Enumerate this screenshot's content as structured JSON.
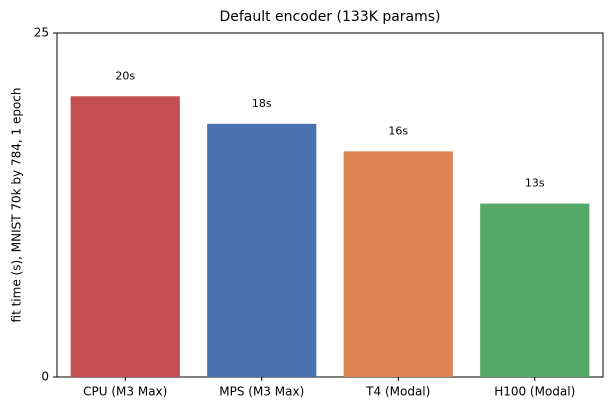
{
  "chart_data": {
    "type": "bar",
    "title": "Default encoder (133K params)",
    "y_label": "fit time (s), MNIST 70k by 784, 1 epoch",
    "categories": [
      "CPU (M3 Max)",
      "MPS (M3 Max)",
      "T4 (Modal)",
      "H100 (Modal)"
    ],
    "values": [
      20.4,
      18.4,
      16.4,
      12.6
    ],
    "value_labels": [
      "20s",
      "18s",
      "16s",
      "13s"
    ],
    "colors": [
      "#c44e52",
      "#4c72b0",
      "#dd8452",
      "#55a868"
    ],
    "ylim": [
      0,
      25
    ],
    "yticks": [
      0,
      25
    ]
  }
}
